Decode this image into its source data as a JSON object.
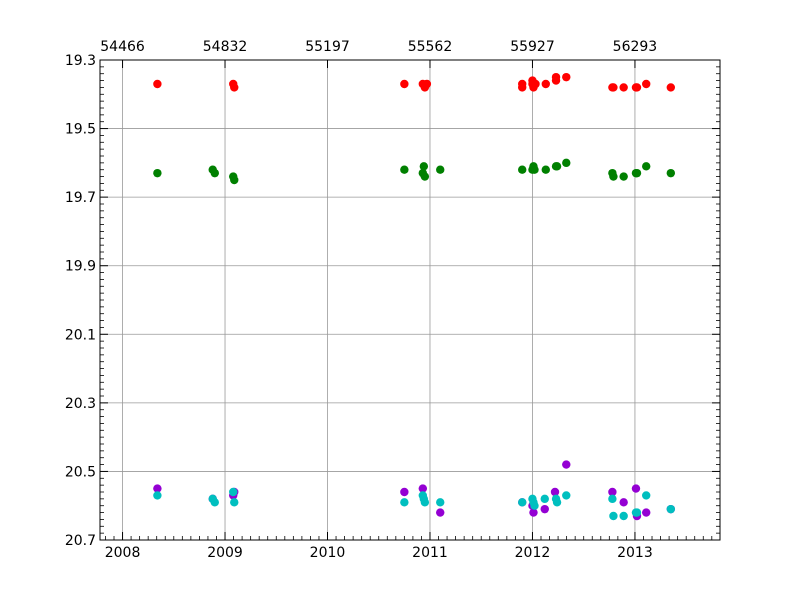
{
  "chart_data": {
    "type": "scatter",
    "title": "",
    "xlabel": "",
    "ylabel": "",
    "x_unit": "decimal year",
    "xlim": [
      2007.78,
      2013.83
    ],
    "ylim": [
      20.7,
      19.3
    ],
    "y_inverted": true,
    "grid": true,
    "legend": "none",
    "x_ticks": [
      2008,
      2009,
      2010,
      2011,
      2012,
      2013
    ],
    "x_tick_labels": [
      "2008",
      "2009",
      "2010",
      "2011",
      "2012",
      "2013"
    ],
    "y_ticks": [
      19.3,
      19.5,
      19.7,
      19.9,
      20.1,
      20.3,
      20.5,
      20.7
    ],
    "y_tick_labels": [
      "19.3",
      "19.5",
      "19.7",
      "19.9",
      "20.1",
      "20.3",
      "20.5",
      "20.7"
    ],
    "top_axis": {
      "label_positions_year": [
        2008.0,
        2009.0,
        2010.0,
        2011.0,
        2012.0,
        2013.0
      ],
      "tick_labels": [
        "54466",
        "54832",
        "55197",
        "55562",
        "55927",
        "56293"
      ]
    },
    "series": [
      {
        "color": "#ff0000",
        "points": [
          [
            2008.34,
            19.37
          ],
          [
            2009.08,
            19.37
          ],
          [
            2009.09,
            19.38
          ],
          [
            2010.75,
            19.37
          ],
          [
            2010.93,
            19.37
          ],
          [
            2010.95,
            19.38
          ],
          [
            2010.97,
            19.37
          ],
          [
            2011.9,
            19.37
          ],
          [
            2011.9,
            19.38
          ],
          [
            2012.0,
            19.36
          ],
          [
            2012.0,
            19.37
          ],
          [
            2012.01,
            19.38
          ],
          [
            2012.03,
            19.37
          ],
          [
            2012.13,
            19.37
          ],
          [
            2012.23,
            19.35
          ],
          [
            2012.23,
            19.36
          ],
          [
            2012.33,
            19.35
          ],
          [
            2012.78,
            19.38
          ],
          [
            2012.79,
            19.38
          ],
          [
            2012.89,
            19.38
          ],
          [
            2013.01,
            19.38
          ],
          [
            2013.02,
            19.38
          ],
          [
            2013.11,
            19.37
          ],
          [
            2013.35,
            19.38
          ]
        ]
      },
      {
        "color": "#008000",
        "points": [
          [
            2008.34,
            19.63
          ],
          [
            2008.88,
            19.62
          ],
          [
            2008.9,
            19.63
          ],
          [
            2009.08,
            19.64
          ],
          [
            2009.09,
            19.65
          ],
          [
            2010.75,
            19.62
          ],
          [
            2010.93,
            19.63
          ],
          [
            2010.94,
            19.61
          ],
          [
            2010.95,
            19.64
          ],
          [
            2011.1,
            19.62
          ],
          [
            2011.9,
            19.62
          ],
          [
            2012.0,
            19.62
          ],
          [
            2012.01,
            19.61
          ],
          [
            2012.02,
            19.62
          ],
          [
            2012.13,
            19.62
          ],
          [
            2012.23,
            19.61
          ],
          [
            2012.24,
            19.61
          ],
          [
            2012.33,
            19.6
          ],
          [
            2012.78,
            19.63
          ],
          [
            2012.79,
            19.64
          ],
          [
            2012.89,
            19.64
          ],
          [
            2013.01,
            19.63
          ],
          [
            2013.02,
            19.63
          ],
          [
            2013.11,
            19.61
          ],
          [
            2013.35,
            19.63
          ]
        ]
      },
      {
        "color": "#9400d3",
        "points": [
          [
            2008.34,
            20.55
          ],
          [
            2008.88,
            20.58
          ],
          [
            2009.08,
            20.57
          ],
          [
            2009.09,
            20.56
          ],
          [
            2010.75,
            20.56
          ],
          [
            2010.93,
            20.55
          ],
          [
            2011.1,
            20.62
          ],
          [
            2011.9,
            20.59
          ],
          [
            2012.0,
            20.6
          ],
          [
            2012.01,
            20.62
          ],
          [
            2012.12,
            20.61
          ],
          [
            2012.22,
            20.56
          ],
          [
            2012.33,
            20.48
          ],
          [
            2012.78,
            20.56
          ],
          [
            2012.89,
            20.59
          ],
          [
            2013.01,
            20.55
          ],
          [
            2013.02,
            20.63
          ],
          [
            2013.11,
            20.62
          ],
          [
            2013.35,
            20.61
          ]
        ]
      },
      {
        "color": "#00bfbf",
        "points": [
          [
            2008.34,
            20.57
          ],
          [
            2008.88,
            20.58
          ],
          [
            2008.9,
            20.59
          ],
          [
            2009.08,
            20.56
          ],
          [
            2009.09,
            20.59
          ],
          [
            2010.75,
            20.59
          ],
          [
            2010.93,
            20.57
          ],
          [
            2010.94,
            20.58
          ],
          [
            2010.95,
            20.59
          ],
          [
            2011.1,
            20.59
          ],
          [
            2011.9,
            20.59
          ],
          [
            2012.0,
            20.58
          ],
          [
            2012.01,
            20.59
          ],
          [
            2012.02,
            20.6
          ],
          [
            2012.12,
            20.58
          ],
          [
            2012.23,
            20.58
          ],
          [
            2012.24,
            20.59
          ],
          [
            2012.33,
            20.57
          ],
          [
            2012.78,
            20.58
          ],
          [
            2012.79,
            20.63
          ],
          [
            2012.89,
            20.63
          ],
          [
            2013.01,
            20.62
          ],
          [
            2013.02,
            20.62
          ],
          [
            2013.11,
            20.57
          ],
          [
            2013.35,
            20.61
          ]
        ]
      }
    ]
  }
}
